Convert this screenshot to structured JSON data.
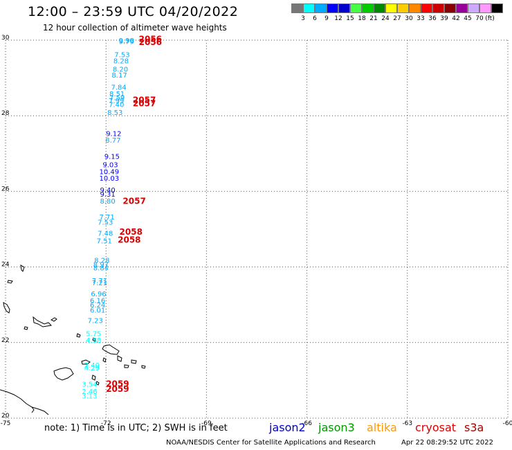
{
  "header": {
    "title": "12:00 – 23:59 UTC 04/20/2022",
    "subtitle": "12 hour collection of altimeter wave heights"
  },
  "legend": {
    "unit": "(ft)",
    "colors": [
      "#777777",
      "#00ffff",
      "#00aaff",
      "#0000ff",
      "#0000cc",
      "#44ff44",
      "#00cc00",
      "#008800",
      "#ffff00",
      "#ffcc00",
      "#ff8800",
      "#ff0000",
      "#cc0000",
      "#880000",
      "#990099",
      "#ccaaff",
      "#ff99ff",
      "#000000"
    ],
    "labels": [
      "3",
      "6",
      "9",
      "12",
      "15",
      "18",
      "21",
      "24",
      "27",
      "30",
      "33",
      "36",
      "39",
      "42",
      "45",
      "70"
    ]
  },
  "axes": {
    "x_ticks": [
      "-75",
      "-72",
      "-69",
      "-66",
      "-63",
      "-60"
    ],
    "y_ticks": [
      "30",
      "28",
      "26",
      "24",
      "22",
      "20"
    ]
  },
  "wave_labels": [
    {
      "text": "9.98",
      "lon": -71.62,
      "lat": 29.93,
      "color": "#00aaff"
    },
    {
      "text": "9.79",
      "lon": -71.62,
      "lat": 29.9,
      "color": "#00aaff"
    },
    {
      "text": "7.53",
      "lon": -71.75,
      "lat": 29.55,
      "color": "#00aaff"
    },
    {
      "text": "8.28",
      "lon": -71.78,
      "lat": 29.39,
      "color": "#00aaff"
    },
    {
      "text": "8.20",
      "lon": -71.8,
      "lat": 29.17,
      "color": "#00aaff"
    },
    {
      "text": "8.17",
      "lon": -71.83,
      "lat": 29.01,
      "color": "#00aaff"
    },
    {
      "text": "7.84",
      "lon": -71.85,
      "lat": 28.69,
      "color": "#00aaff"
    },
    {
      "text": "8.51",
      "lon": -71.9,
      "lat": 28.52,
      "color": "#00aaff"
    },
    {
      "text": "7.59",
      "lon": -71.9,
      "lat": 28.42,
      "color": "#00aaff"
    },
    {
      "text": "7.99",
      "lon": -71.92,
      "lat": 28.33,
      "color": "#00aaff"
    },
    {
      "text": "7.40",
      "lon": -71.92,
      "lat": 28.23,
      "color": "#00aaff"
    },
    {
      "text": "8.53",
      "lon": -71.96,
      "lat": 28.02,
      "color": "#00aaff"
    },
    {
      "text": "9.12",
      "lon": -72.0,
      "lat": 27.46,
      "color": "#0000ff"
    },
    {
      "text": "8.77",
      "lon": -72.02,
      "lat": 27.29,
      "color": "#00aaff"
    },
    {
      "text": "9.15",
      "lon": -72.05,
      "lat": 26.86,
      "color": "#0000ff"
    },
    {
      "text": "9.03",
      "lon": -72.1,
      "lat": 26.64,
      "color": "#0000ff"
    },
    {
      "text": "10.49",
      "lon": -72.2,
      "lat": 26.46,
      "color": "#0000ff"
    },
    {
      "text": "10.03",
      "lon": -72.2,
      "lat": 26.28,
      "color": "#0000ff"
    },
    {
      "text": "9.40",
      "lon": -72.18,
      "lat": 25.97,
      "color": "#0000ff"
    },
    {
      "text": "9.31",
      "lon": -72.18,
      "lat": 25.86,
      "color": "#0000ff"
    },
    {
      "text": "8.80",
      "lon": -72.18,
      "lat": 25.68,
      "color": "#00aaff"
    },
    {
      "text": "7.71",
      "lon": -72.2,
      "lat": 25.26,
      "color": "#00aaff"
    },
    {
      "text": "7.53",
      "lon": -72.25,
      "lat": 25.12,
      "color": "#00aaff"
    },
    {
      "text": "7.48",
      "lon": -72.25,
      "lat": 24.83,
      "color": "#00aaff"
    },
    {
      "text": "7.51",
      "lon": -72.28,
      "lat": 24.62,
      "color": "#00aaff"
    },
    {
      "text": "8.28",
      "lon": -72.35,
      "lat": 24.11,
      "color": "#00aaff"
    },
    {
      "text": "8.97",
      "lon": -72.38,
      "lat": 24.0,
      "color": "#00aaff"
    },
    {
      "text": "8.84",
      "lon": -72.38,
      "lat": 23.91,
      "color": "#00aaff"
    },
    {
      "text": "7.71",
      "lon": -72.42,
      "lat": 23.57,
      "color": "#00aaff"
    },
    {
      "text": "7.21",
      "lon": -72.42,
      "lat": 23.52,
      "color": "#00aaff"
    },
    {
      "text": "6.96",
      "lon": -72.45,
      "lat": 23.22,
      "color": "#00aaff"
    },
    {
      "text": "6.16",
      "lon": -72.48,
      "lat": 23.05,
      "color": "#00aaff"
    },
    {
      "text": "6.24",
      "lon": -72.48,
      "lat": 22.93,
      "color": "#00aaff"
    },
    {
      "text": "6.01",
      "lon": -72.48,
      "lat": 22.79,
      "color": "#00aaff"
    },
    {
      "text": "7.23",
      "lon": -72.55,
      "lat": 22.52,
      "color": "#00aaff"
    },
    {
      "text": "5.75",
      "lon": -72.6,
      "lat": 22.17,
      "color": "#00ffff"
    },
    {
      "text": "4.58",
      "lon": -72.6,
      "lat": 22.0,
      "color": "#00ffff"
    },
    {
      "text": "2.40",
      "lon": -72.65,
      "lat": 21.34,
      "color": "#00ffff"
    },
    {
      "text": "4.29",
      "lon": -72.65,
      "lat": 21.26,
      "color": "#00ffff"
    },
    {
      "text": "3.54",
      "lon": -72.72,
      "lat": 20.83,
      "color": "#00ffff"
    },
    {
      "text": "2.46",
      "lon": -72.72,
      "lat": 20.64,
      "color": "#00ffff"
    },
    {
      "text": "3.13",
      "lon": -72.72,
      "lat": 20.52,
      "color": "#00ffff"
    }
  ],
  "pass_labels": [
    {
      "text": "2056",
      "lon": -71.02,
      "lat": 29.95,
      "color": "#dd0000"
    },
    {
      "text": "2056",
      "lon": -71.02,
      "lat": 29.87,
      "color": "#dd0000"
    },
    {
      "text": "2057",
      "lon": -71.2,
      "lat": 28.34,
      "color": "#dd0000"
    },
    {
      "text": "2057",
      "lon": -71.2,
      "lat": 28.25,
      "color": "#dd0000"
    },
    {
      "text": "2057",
      "lon": -71.5,
      "lat": 25.67,
      "color": "#dd0000"
    },
    {
      "text": "2058",
      "lon": -71.6,
      "lat": 24.85,
      "color": "#dd0000"
    },
    {
      "text": "2058",
      "lon": -71.65,
      "lat": 24.64,
      "color": "#dd0000"
    },
    {
      "text": "2059",
      "lon": -72.0,
      "lat": 20.83,
      "color": "#dd0000"
    },
    {
      "text": "2059",
      "lon": -72.0,
      "lat": 20.7,
      "color": "#dd0000"
    }
  ],
  "footer": {
    "note": "note: 1) Time is in UTC; 2) SWH is in feet",
    "satellites": [
      {
        "name": "jason2",
        "color": "#0000cc"
      },
      {
        "name": "jason3",
        "color": "#009900"
      },
      {
        "name": "altika",
        "color": "#ff9900"
      },
      {
        "name": "cryosat",
        "color": "#dd0000"
      },
      {
        "name": "s3a",
        "color": "#aa0000"
      }
    ],
    "credit": "NOAA/NESDIS Center for Satellite Applications and Research",
    "timestamp": "Apr 22 08:29:52 UTC 2022"
  }
}
